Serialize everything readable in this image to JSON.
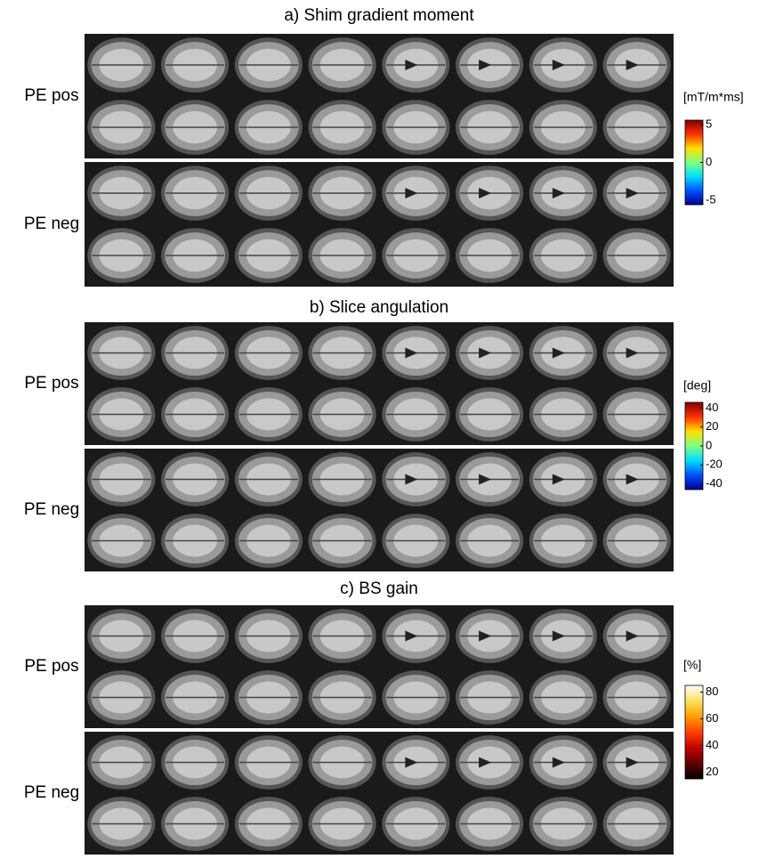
{
  "panels": [
    {
      "title": "a) Shim gradient moment",
      "rows": [
        "PE pos",
        "PE neg"
      ],
      "colorbar": {
        "unit": "[mT/m*ms]",
        "lim": [
          -5.6,
          5.6
        ],
        "ticks": [
          5,
          0,
          -5
        ],
        "colormap": [
          "#00008f",
          "#0050ff",
          "#00dfff",
          "#80ff80",
          "#ffe000",
          "#ff3000",
          "#800000"
        ]
      }
    },
    {
      "title": "b) Slice angulation",
      "rows": [
        "PE pos",
        "PE neg"
      ],
      "colorbar": {
        "unit": "[deg]",
        "lim": [
          -46,
          46
        ],
        "ticks": [
          40,
          20,
          0,
          -20,
          -40
        ],
        "colormap": [
          "#00008f",
          "#0050ff",
          "#00dfff",
          "#80ff80",
          "#ffe000",
          "#ff3000",
          "#800000"
        ]
      }
    },
    {
      "title": "c) BS gain",
      "rows": [
        "PE pos",
        "PE neg"
      ],
      "colorbar": {
        "unit": "[%]",
        "lim": [
          15,
          85
        ],
        "ticks": [
          80,
          60,
          40,
          20
        ],
        "colormap": [
          "#000000",
          "#600000",
          "#c00000",
          "#ff4000",
          "#ffa000",
          "#ffe060",
          "#ffffff"
        ]
      }
    }
  ]
}
